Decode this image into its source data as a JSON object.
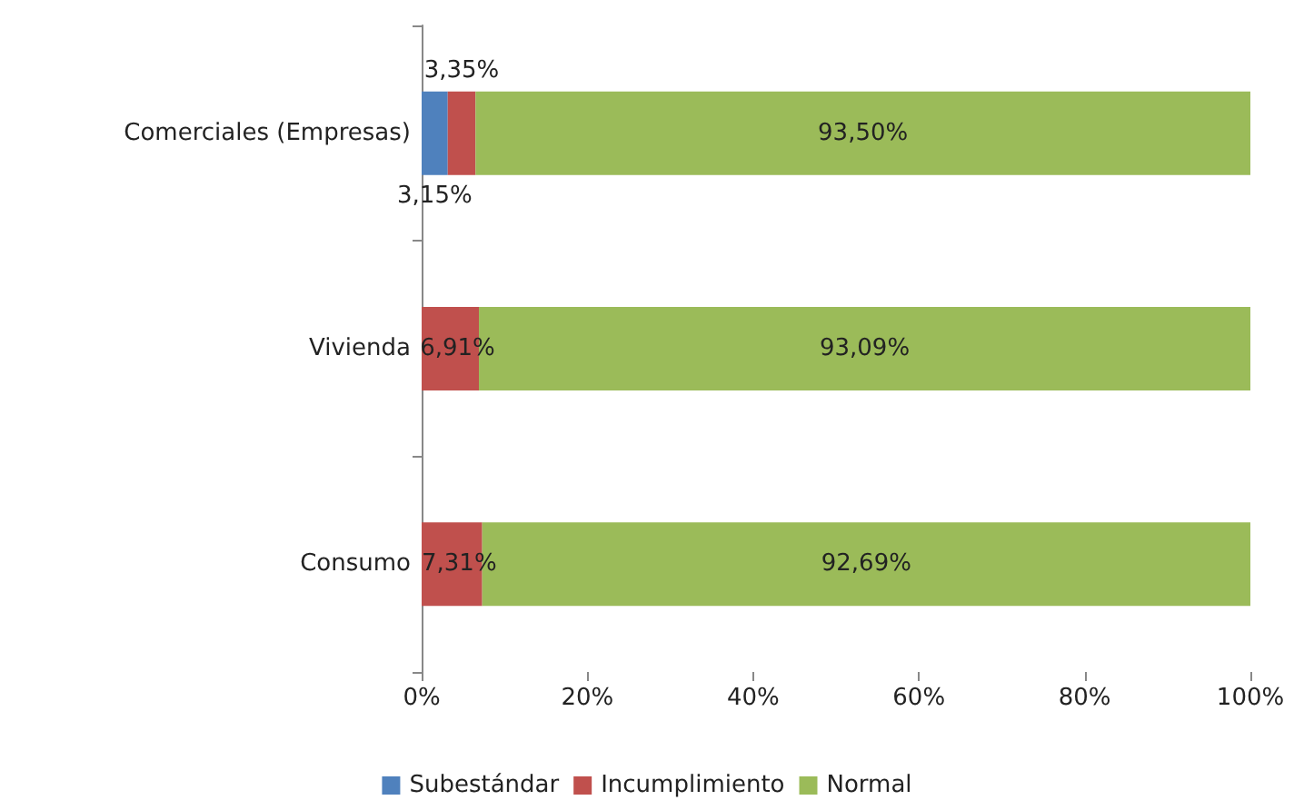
{
  "chart_data": {
    "type": "bar",
    "orientation": "horizontal",
    "stacked": true,
    "categories": [
      "Comerciales (Empresas)",
      "Vivienda",
      "Consumo"
    ],
    "series": [
      {
        "name": "Subestándar",
        "color": "#4f81bd",
        "values": [
          3.15,
          0,
          0
        ],
        "value_labels": [
          "3,15%",
          null,
          null
        ]
      },
      {
        "name": "Incumplimiento",
        "color": "#c0504d",
        "values": [
          3.35,
          6.91,
          7.31
        ],
        "value_labels": [
          "3,35%",
          "6,91%",
          "7,31%"
        ]
      },
      {
        "name": "Normal",
        "color": "#9bbb59",
        "values": [
          93.5,
          93.09,
          92.69
        ],
        "value_labels": [
          "93,50%",
          "93,09%",
          "92,69%"
        ]
      }
    ],
    "xlim": [
      0,
      100
    ],
    "xticks": [
      {
        "value": 0,
        "label": "0%"
      },
      {
        "value": 20,
        "label": "20%"
      },
      {
        "value": 40,
        "label": "40%"
      },
      {
        "value": 60,
        "label": "60%"
      },
      {
        "value": 80,
        "label": "80%"
      },
      {
        "value": 100,
        "label": "100%"
      }
    ],
    "grid": false,
    "legend": "bottom"
  }
}
